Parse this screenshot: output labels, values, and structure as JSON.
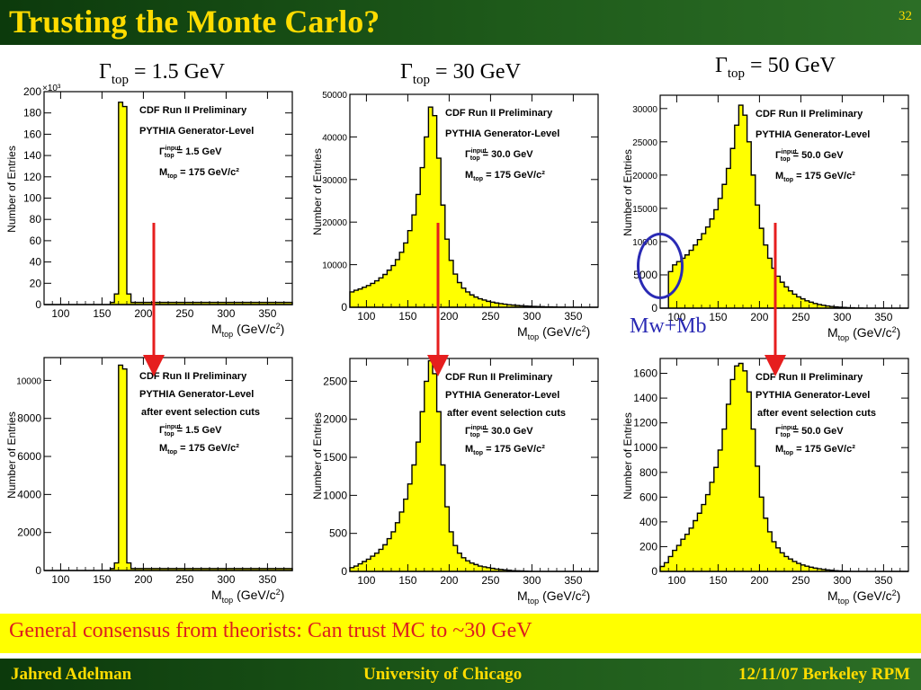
{
  "slide": {
    "title": "Trusting the Monte Carlo?",
    "page_number": "32",
    "column_headers": [
      {
        "symbol": "Γ",
        "sub": "top",
        "rest": " = 1.5 GeV"
      },
      {
        "symbol": "Γ",
        "sub": "top",
        "rest": " = 30 GeV"
      },
      {
        "symbol": "Γ",
        "sub": "top",
        "rest": " = 50 GeV"
      }
    ],
    "annotation": "Mw+Mb",
    "banner": "General consensus from theorists: Can trust MC to ~30 GeV",
    "footer": {
      "left": "Jahred Adelman",
      "center": "University of Chicago",
      "right": "12/11/07 Berkeley RPM"
    },
    "colors": {
      "title_bar": "#1e5a1a",
      "title_text": "#ffdc00",
      "histogram_fill": "#ffff00",
      "arrow": "#e61e1e",
      "annotation": "#2a2ab4",
      "banner_bg": "#ffff00",
      "banner_text": "#dc1e1e"
    }
  },
  "chart_data": [
    {
      "type": "bar",
      "id": "top-gamma-1.5-generator",
      "xlabel": "Mtop (GeV/c2)",
      "ylabel": "Number of Entries",
      "y_multiplier": "×10³",
      "xlim": [
        80,
        380
      ],
      "ylim": [
        0,
        200
      ],
      "xticks": [
        100,
        150,
        200,
        250,
        300,
        350
      ],
      "yticks": [
        0,
        20,
        40,
        60,
        80,
        100,
        120,
        140,
        160,
        180,
        200
      ],
      "legend": [
        "CDF Run II Preliminary",
        "PYTHIA Generator-Level",
        "Γ_top^input = 1.5 GeV",
        "M_top = 175 GeV/c²"
      ],
      "bin_edges": [
        80,
        160,
        165,
        170,
        175,
        180,
        185,
        380
      ],
      "values": [
        0,
        2,
        10,
        190,
        186,
        10,
        2
      ]
    },
    {
      "type": "bar",
      "id": "top-gamma-30-generator",
      "xlabel": "Mtop (GeV/c2)",
      "ylabel": "Number of Entries",
      "xlim": [
        80,
        380
      ],
      "ylim": [
        0,
        50000
      ],
      "xticks": [
        100,
        150,
        200,
        250,
        300,
        350
      ],
      "yticks": [
        0,
        10000,
        20000,
        30000,
        40000,
        50000
      ],
      "legend": [
        "CDF Run II Preliminary",
        "PYTHIA Generator-Level",
        "Γ_top^input = 30.0 GeV",
        "M_top = 175 GeV/c²"
      ],
      "bin_start": 80,
      "bin_width": 5,
      "values": [
        3600,
        4000,
        4300,
        4700,
        5100,
        5600,
        6200,
        6900,
        7700,
        8700,
        9800,
        11200,
        12900,
        15100,
        18000,
        21700,
        26500,
        32800,
        40000,
        47000,
        45000,
        35000,
        24000,
        16000,
        11000,
        7800,
        5800,
        4500,
        3600,
        2900,
        2400,
        2000,
        1700,
        1400,
        1200,
        1000,
        850,
        720,
        600,
        500,
        420,
        350,
        290,
        240,
        200,
        160,
        130,
        100,
        80,
        60,
        40,
        30,
        20,
        10,
        5,
        0,
        0,
        0,
        0,
        0
      ]
    },
    {
      "type": "bar",
      "id": "top-gamma-50-generator",
      "xlabel": "Mtop (GeV/c2)",
      "ylabel": "Number of Entries",
      "xlim": [
        80,
        380
      ],
      "ylim": [
        0,
        32000
      ],
      "xticks": [
        100,
        150,
        200,
        250,
        300,
        350
      ],
      "yticks": [
        0,
        5000,
        10000,
        15000,
        20000,
        25000,
        30000
      ],
      "legend": [
        "CDF Run II Preliminary",
        "PYTHIA Generator-Level",
        "Γ_top^input = 50.0 GeV",
        "M_top = 175 GeV/c²"
      ],
      "bin_start": 80,
      "bin_width": 5,
      "values": [
        0,
        0,
        5500,
        6500,
        7000,
        7500,
        8000,
        8700,
        9500,
        10300,
        11200,
        12200,
        13400,
        14800,
        16500,
        18600,
        21000,
        24000,
        27500,
        30500,
        29000,
        25000,
        20000,
        15500,
        12000,
        9500,
        7500,
        6000,
        4800,
        3900,
        3200,
        2600,
        2100,
        1700,
        1400,
        1100,
        900,
        700,
        550,
        430,
        330,
        250,
        190,
        140,
        100,
        70,
        50,
        30,
        20,
        10,
        5,
        0,
        0,
        0,
        0,
        0,
        0,
        0,
        0,
        0
      ]
    },
    {
      "type": "bar",
      "id": "top-gamma-1.5-selected",
      "xlabel": "Mtop (GeV/c2)",
      "ylabel": "Number of Entries",
      "xlim": [
        80,
        380
      ],
      "ylim": [
        0,
        11200
      ],
      "xticks": [
        100,
        150,
        200,
        250,
        300,
        350
      ],
      "yticks": [
        0,
        2000,
        4000,
        6000,
        8000,
        10000
      ],
      "legend": [
        "CDF Run II Preliminary",
        "PYTHIA Generator-Level",
        "after event selection cuts",
        "Γ_top^input = 1.5 GeV",
        "M_top = 175 GeV/c²"
      ],
      "bin_edges": [
        80,
        160,
        165,
        170,
        175,
        180,
        185,
        380
      ],
      "values": [
        0,
        100,
        400,
        10800,
        10600,
        400,
        100
      ]
    },
    {
      "type": "bar",
      "id": "top-gamma-30-selected",
      "xlabel": "Mtop (GeV/c2)",
      "ylabel": "Number of Entries",
      "xlim": [
        80,
        380
      ],
      "ylim": [
        0,
        2800
      ],
      "xticks": [
        100,
        150,
        200,
        250,
        300,
        350
      ],
      "yticks": [
        0,
        500,
        1000,
        1500,
        2000,
        2500
      ],
      "legend": [
        "CDF Run II Preliminary",
        "PYTHIA Generator-Level",
        "after event selection cuts",
        "Γ_top^input = 30.0 GeV",
        "M_top = 175 GeV/c²"
      ],
      "bin_start": 80,
      "bin_width": 5,
      "values": [
        50,
        70,
        100,
        130,
        160,
        200,
        240,
        290,
        350,
        430,
        520,
        640,
        780,
        950,
        1150,
        1400,
        1700,
        2100,
        2500,
        2770,
        2600,
        2100,
        1400,
        850,
        520,
        340,
        240,
        180,
        140,
        110,
        90,
        70,
        60,
        50,
        40,
        30,
        25,
        20,
        15,
        10,
        8,
        6,
        4,
        2,
        1,
        0,
        0,
        0,
        0,
        0,
        0,
        0,
        0,
        0,
        0,
        0,
        0,
        0,
        0,
        0
      ]
    },
    {
      "type": "bar",
      "id": "top-gamma-50-selected",
      "xlabel": "Mtop (GeV/c2)",
      "ylabel": "Number of Entries",
      "xlim": [
        80,
        380
      ],
      "ylim": [
        0,
        1720
      ],
      "xticks": [
        100,
        150,
        200,
        250,
        300,
        350
      ],
      "yticks": [
        0,
        200,
        400,
        600,
        800,
        1000,
        1200,
        1400,
        1600
      ],
      "legend": [
        "CDF Run II Preliminary",
        "PYTHIA Generator-Level",
        "after event selection cuts",
        "Γ_top^input = 50.0 GeV",
        "M_top = 175 GeV/c²"
      ],
      "bin_start": 80,
      "bin_width": 5,
      "values": [
        40,
        70,
        120,
        170,
        210,
        260,
        300,
        350,
        410,
        470,
        540,
        620,
        720,
        840,
        980,
        1150,
        1350,
        1550,
        1660,
        1680,
        1620,
        1450,
        1150,
        850,
        600,
        430,
        320,
        240,
        190,
        150,
        120,
        100,
        80,
        65,
        52,
        42,
        34,
        27,
        21,
        16,
        12,
        9,
        6,
        4,
        2,
        1,
        0,
        0,
        0,
        0,
        0,
        0,
        0,
        0,
        0,
        0,
        0,
        0,
        0,
        0
      ]
    }
  ]
}
